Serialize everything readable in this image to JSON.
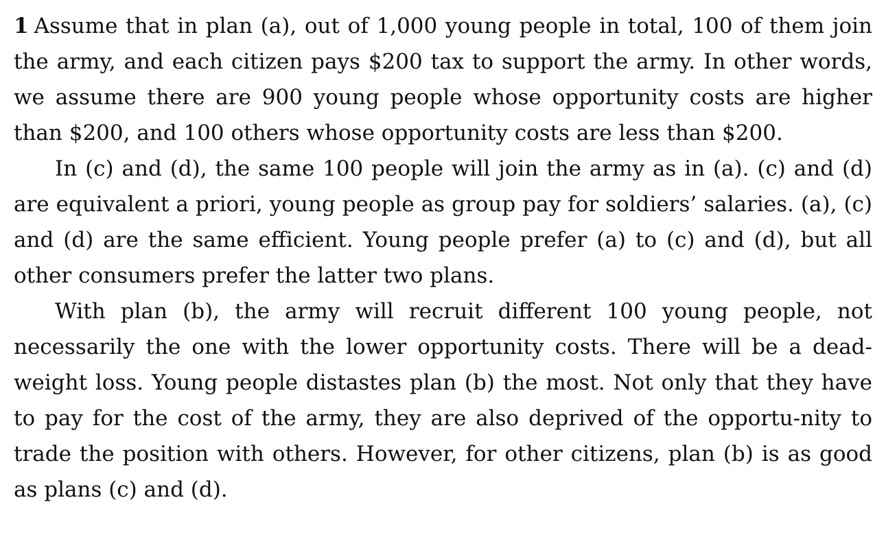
{
  "document": {
    "item_number": "1",
    "paragraphs": [
      "Assume that in plan (a), out of 1,000 young people in total, 100 of them join the army, and each citizen pays $200 tax to support the army. In other words, we assume there are 900 young people whose opportunity costs are higher than $200, and 100 others whose opportunity costs are less than $200.",
      "In (c) and (d), the same 100 people will join the army as in (a). (c) and (d) are equivalent a priori, young people as group pay for soldiers’ salaries. (a), (c) and (d) are the same efficient. Young people prefer (a) to (c) and (d), but all other consumers prefer the latter two plans.",
      "With plan (b), the army will recruit different 100 young people, not necessarily the one with the lower opportunity costs. There will be a dead-weight loss. Young people distastes plan (b) the most. Not only that they have to pay for the cost of the army, they are also deprived of the opportu-nity to trade the position with others. However, for other citizens, plan (b) is as good as plans (c) and (d)."
    ]
  }
}
